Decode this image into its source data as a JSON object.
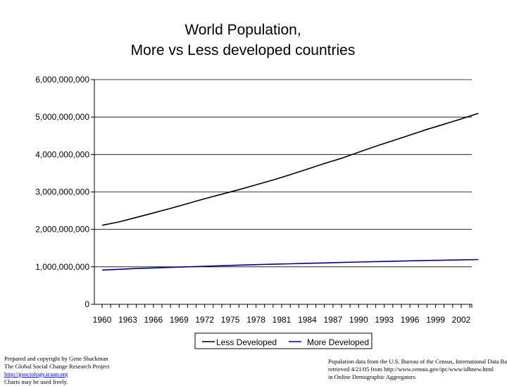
{
  "chart_data": {
    "type": "line",
    "title": [
      "World Population,",
      "More vs Less developed countries"
    ],
    "xlabel": "",
    "ylabel": "",
    "ylim": [
      0,
      6000000000
    ],
    "y_ticks": [
      "0",
      "1,000,000,000",
      "2,000,000,000",
      "3,000,000,000",
      "4,000,000,000",
      "5,000,000,000",
      "6,000,000,000"
    ],
    "x_ticks": [
      "1960",
      "1963",
      "1966",
      "1969",
      "1972",
      "1975",
      "1978",
      "1981",
      "1984",
      "1987",
      "1990",
      "1993",
      "1996",
      "1999",
      "2002"
    ],
    "x_range": [
      1960,
      2004
    ],
    "legend_position": "bottom-right",
    "grid": "horizontal",
    "series": [
      {
        "name": "Less Developed",
        "color": "#000000",
        "x": [
          1960,
          1962,
          1964,
          1966,
          1968,
          1970,
          1972,
          1974,
          1976,
          1978,
          1980,
          1982,
          1984,
          1986,
          1988,
          1990,
          1992,
          1994,
          1996,
          1998,
          2000,
          2002,
          2004
        ],
        "values": [
          2110000000,
          2200000000,
          2320000000,
          2440000000,
          2560000000,
          2690000000,
          2820000000,
          2940000000,
          3060000000,
          3190000000,
          3320000000,
          3460000000,
          3610000000,
          3760000000,
          3900000000,
          4060000000,
          4220000000,
          4370000000,
          4520000000,
          4670000000,
          4810000000,
          4950000000,
          5100000000
        ]
      },
      {
        "name": "More Developed",
        "color": "#00008b",
        "x": [
          1960,
          1962,
          1964,
          1966,
          1968,
          1970,
          1972,
          1974,
          1976,
          1978,
          1980,
          1982,
          1984,
          1986,
          1988,
          1990,
          1992,
          1994,
          1996,
          1998,
          2000,
          2002,
          2004
        ],
        "values": [
          915000000,
          935000000,
          955000000,
          970000000,
          985000000,
          1000000000,
          1015000000,
          1030000000,
          1045000000,
          1058000000,
          1070000000,
          1082000000,
          1094000000,
          1105000000,
          1117000000,
          1128000000,
          1140000000,
          1150000000,
          1160000000,
          1170000000,
          1178000000,
          1186000000,
          1194000000
        ]
      }
    ]
  },
  "credits": {
    "left": {
      "line1": "Prepared and copyright by Gene Shackman",
      "line2": "The Global Social Change Research Project",
      "link": "http://gsociology.icaap.org",
      "line4": "Charts may be used freely."
    },
    "right": {
      "line1": "Population data from the U.S. Bureau of the Census, International Data Base",
      "line2": "retrieved 4/21/05 from http://www.census.gov/ipc/www/idbnew.html",
      "line3": "in Online Demographic Aggregators"
    }
  }
}
